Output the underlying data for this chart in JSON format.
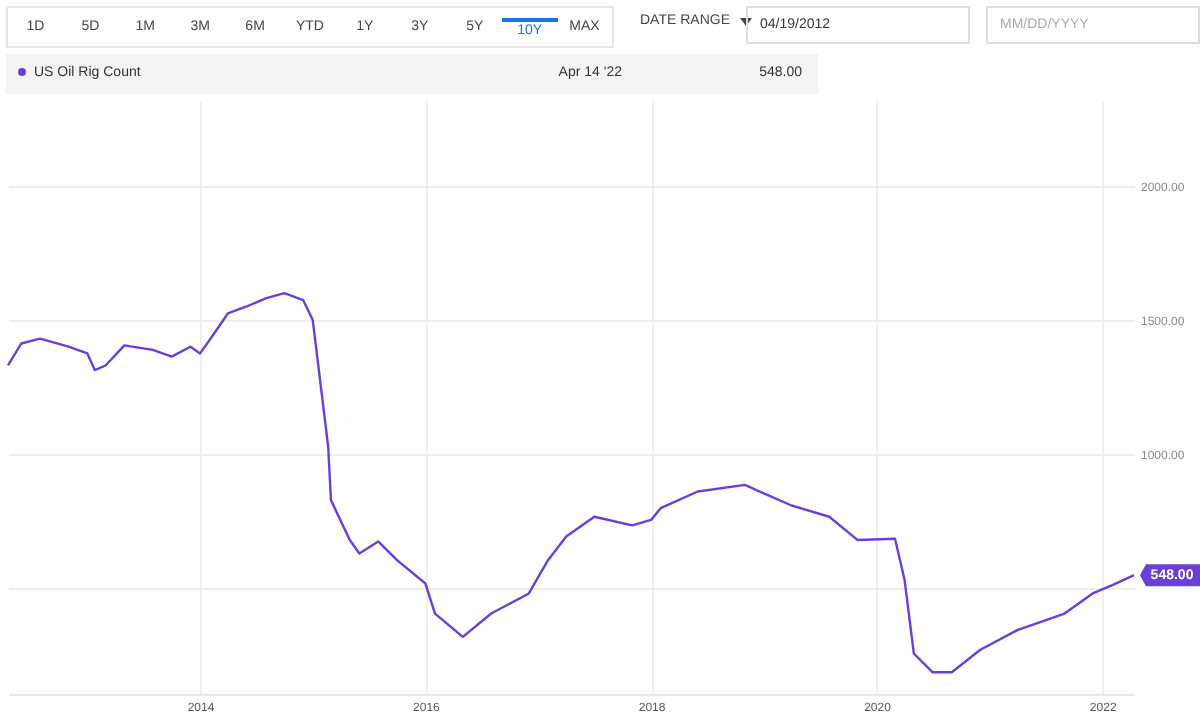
{
  "chart_data": {
    "type": "line",
    "x": [
      "2012-04-19",
      "2012-06",
      "2012-08",
      "2012-11",
      "2013-01",
      "2013-01-25",
      "2013-03",
      "2013-05",
      "2013-08",
      "2013-10",
      "2013-12",
      "2014-01",
      "2014-02",
      "2014-04",
      "2014-06",
      "2014-08",
      "2014-10",
      "2014-12",
      "2015-01",
      "2015-02-20",
      "2015-03",
      "2015-05",
      "2015-06",
      "2015-08",
      "2015-10",
      "2016-01",
      "2016-02",
      "2016-05",
      "2016-08",
      "2016-12",
      "2017-02",
      "2017-04",
      "2017-07",
      "2017-11",
      "2018-01",
      "2018-02",
      "2018-06",
      "2018-11",
      "2019-01",
      "2019-04",
      "2019-08",
      "2019-11",
      "2020-03",
      "2020-04",
      "2020-05",
      "2020-07",
      "2020-09",
      "2020-12",
      "2021-04",
      "2021-09",
      "2021-12",
      "2022-02",
      "2022-04-14"
    ],
    "series": [
      {
        "name": "US Oil Rig Count",
        "color": "#6a3fd9",
        "values": [
          1330,
          1412,
          1430,
          1400,
          1375,
          1313,
          1330,
          1405,
          1388,
          1363,
          1400,
          1375,
          1425,
          1524,
          1550,
          1580,
          1600,
          1574,
          1500,
          1027,
          828,
          679,
          629,
          674,
          604,
          517,
          405,
          318,
          405,
          480,
          604,
          692,
          766,
          734,
          754,
          798,
          860,
          885,
          853,
          808,
          766,
          679,
          684,
          530,
          256,
          186,
          186,
          269,
          343,
          405,
          480,
          510,
          548
        ]
      }
    ],
    "xlim": [
      "2012-04-19",
      "2022-04-14"
    ],
    "xticks": [
      "2014",
      "2016",
      "2018",
      "2020",
      "2022"
    ],
    "ylim": [
      105,
      2320
    ],
    "yticks": [
      {
        "value": 500,
        "label": null
      },
      {
        "value": 1000,
        "label": "1000.00"
      },
      {
        "value": 1500,
        "label": "1500.00"
      },
      {
        "value": 2000,
        "label": "2000.00"
      }
    ],
    "grid": true,
    "legend": "top left",
    "annotations": [
      "1D",
      "5D",
      "1M",
      "3M",
      "6M",
      "YTD",
      "1Y",
      "3Y",
      "5Y",
      "10Y",
      "MAX",
      "DATE RANGE",
      "04/19/2012",
      "MM/DD/YYYY",
      "Apr 14 '22",
      "548.00",
      {
        "text": "548.00",
        "x": "2022-04-14",
        "y": 548
      }
    ]
  }
}
